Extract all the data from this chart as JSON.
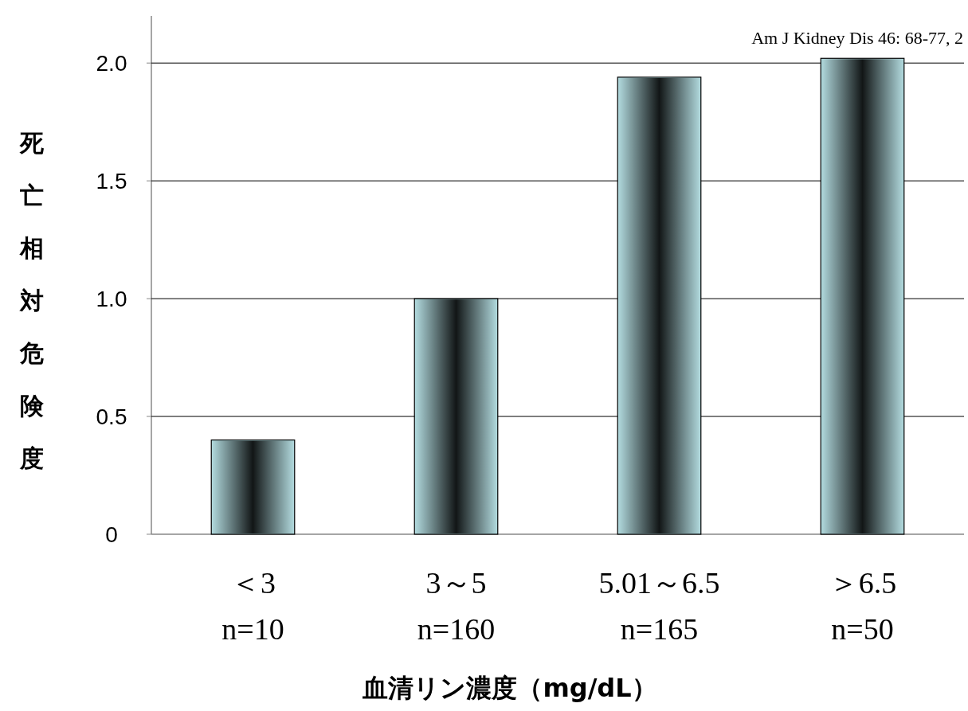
{
  "chart_data": {
    "type": "bar",
    "categories": [
      "＜3\nn=10",
      "3～5\nn=160",
      "5.01～6.5\nn=165",
      "＞6.5\nn=50"
    ],
    "values": [
      0.4,
      1.0,
      1.94,
      2.02
    ],
    "color": "#b0d8dc",
    "ylim": [
      0,
      2.2
    ],
    "yticks": [
      {
        "value": 0,
        "label": "0"
      },
      0.5,
      {
        "value": 1,
        "label": "1.0"
      },
      1.5,
      {
        "value": 2,
        "label": "2.0"
      }
    ],
    "grid": "y",
    "ylabel": "死亡相対危険度",
    "xlabel": "血清リン濃度（mg/dL）",
    "annotations": [
      "Am J Kidney Dis 46: 68-77, 2"
    ]
  }
}
